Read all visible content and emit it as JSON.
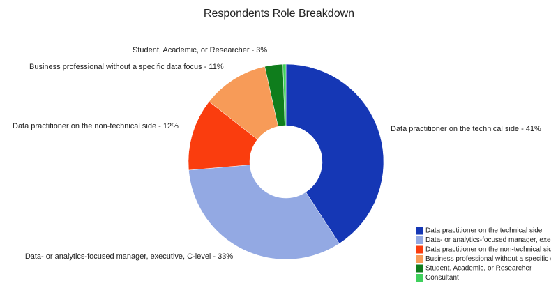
{
  "chart_data": {
    "type": "donut",
    "title": "Respondents Role Breakdown",
    "categories": [
      "Data practitioner on the technical side",
      "Data- or analytics-focused manager, executive, C-level",
      "Data practitioner on the non-technical side",
      "Business professional without a specific data focus",
      "Student, Academic, or Researcher",
      "Consultant"
    ],
    "values": [
      41,
      33,
      12,
      11,
      3,
      0.5
    ],
    "value_labels": [
      "Data practitioner on the technical side - 41%",
      "Data- or analytics-focused manager, executive, C-level - 33%",
      "Data practitioner on the non-technical side - 12%",
      "Business professional without a specific data focus - 11%",
      "Student, Academic, or Researcher - 3%",
      null
    ],
    "colors": [
      "#1537b5",
      "#93a9e3",
      "#fa3d0e",
      "#f79b58",
      "#0f7d1c",
      "#3fd05c"
    ],
    "legend": "bottom-right"
  }
}
